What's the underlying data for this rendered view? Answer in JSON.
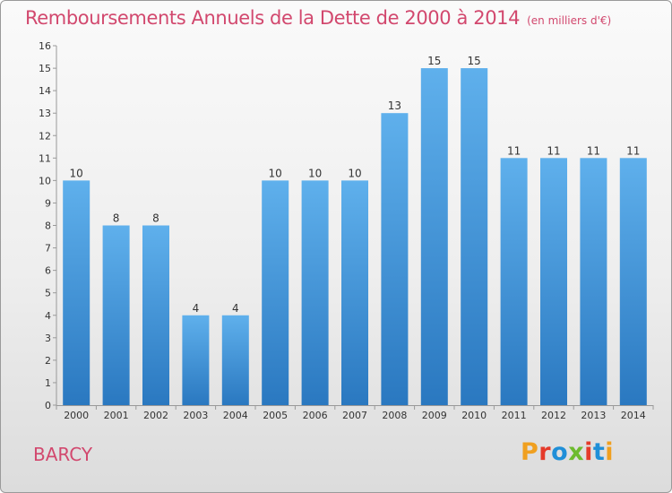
{
  "title": "Remboursements Annuels de la Dette de 2000 à 2014",
  "unit": "(en milliers d'€)",
  "location": "BARCY",
  "logo": {
    "text": "Proxiti",
    "colors": [
      "#f0a020",
      "#e53a2a",
      "#1f8fd8",
      "#6dbb2e",
      "#e53a2a",
      "#1f8fd8",
      "#f0a020"
    ]
  },
  "colors": {
    "bar_top": "#5fb0ec",
    "bar_bottom": "#2a78c0",
    "title": "#d2486e"
  },
  "chart_data": {
    "type": "bar",
    "categories": [
      "2000",
      "2001",
      "2002",
      "2003",
      "2004",
      "2005",
      "2006",
      "2007",
      "2008",
      "2009",
      "2010",
      "2011",
      "2012",
      "2013",
      "2014"
    ],
    "values": [
      10,
      8,
      8,
      4,
      4,
      10,
      10,
      10,
      13,
      15,
      15,
      11,
      11,
      11,
      11
    ],
    "data_labels": [
      "10",
      "8",
      "8",
      "4",
      "4",
      "10",
      "10",
      "10",
      "13",
      "15",
      "15",
      "11",
      "11",
      "11",
      "11"
    ],
    "y_ticks": [
      "0",
      "1",
      "2",
      "3",
      "4",
      "5",
      "6",
      "7",
      "8",
      "9",
      "10",
      "11",
      "12",
      "13",
      "14",
      "15",
      "16"
    ],
    "ylim": [
      0,
      16
    ],
    "grid": false
  }
}
